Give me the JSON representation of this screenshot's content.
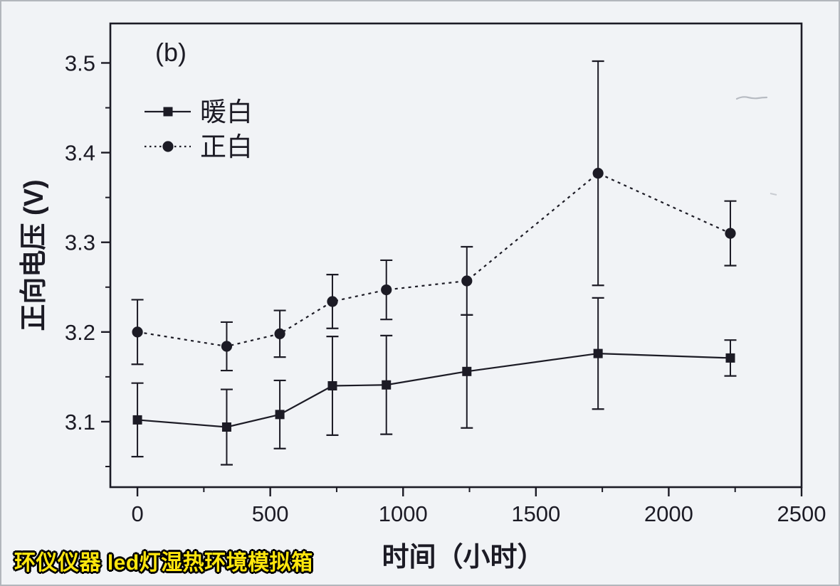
{
  "watermark": {
    "text": "环仪仪器 led灯湿热环境模拟箱",
    "color": "#ffe60d",
    "outline_color": "#000000"
  },
  "chart_data": {
    "type": "line",
    "panel_label": "(b)",
    "title": "",
    "xlabel": "时间（小时）",
    "ylabel": "正向电压 (V)",
    "xlim": [
      -102,
      2500
    ],
    "ylim": [
      3.027,
      3.544
    ],
    "grid": false,
    "x_ticks": [
      0,
      500,
      1000,
      1500,
      2000,
      2500
    ],
    "x_tick_labels": [
      "0",
      "500",
      "1000",
      "1500",
      "2000",
      "2500"
    ],
    "x_minor_ticks": [
      250,
      750,
      1250,
      1750,
      2250
    ],
    "y_ticks": [
      3.1,
      3.2,
      3.3,
      3.4,
      3.5
    ],
    "y_tick_labels": [
      "3.1",
      "3.2",
      "3.3",
      "3.4",
      "3.5"
    ],
    "y_minor_ticks": [
      3.05,
      3.15,
      3.25,
      3.35,
      3.45
    ],
    "legend": {
      "position": "top-left",
      "entries": [
        "暖白",
        "正白"
      ]
    },
    "x": [
      0,
      336,
      536,
      734,
      937,
      1240,
      1734,
      2232
    ],
    "series": [
      {
        "name": "暖白",
        "marker": "square",
        "line_style": "solid",
        "values": [
          3.102,
          3.094,
          3.108,
          3.14,
          3.141,
          3.156,
          3.176,
          3.171
        ],
        "errors": [
          0.041,
          0.042,
          0.038,
          0.055,
          0.055,
          0.063,
          0.062,
          0.02
        ]
      },
      {
        "name": "正白",
        "marker": "circle",
        "line_style": "dashed",
        "values": [
          3.2,
          3.184,
          3.198,
          3.234,
          3.247,
          3.257,
          3.377,
          3.31
        ],
        "errors": [
          0.036,
          0.027,
          0.026,
          0.03,
          0.033,
          0.038,
          0.125,
          0.036
        ]
      }
    ],
    "ink_color": "#1c1b25",
    "paper_color": "#f1f3f6"
  }
}
